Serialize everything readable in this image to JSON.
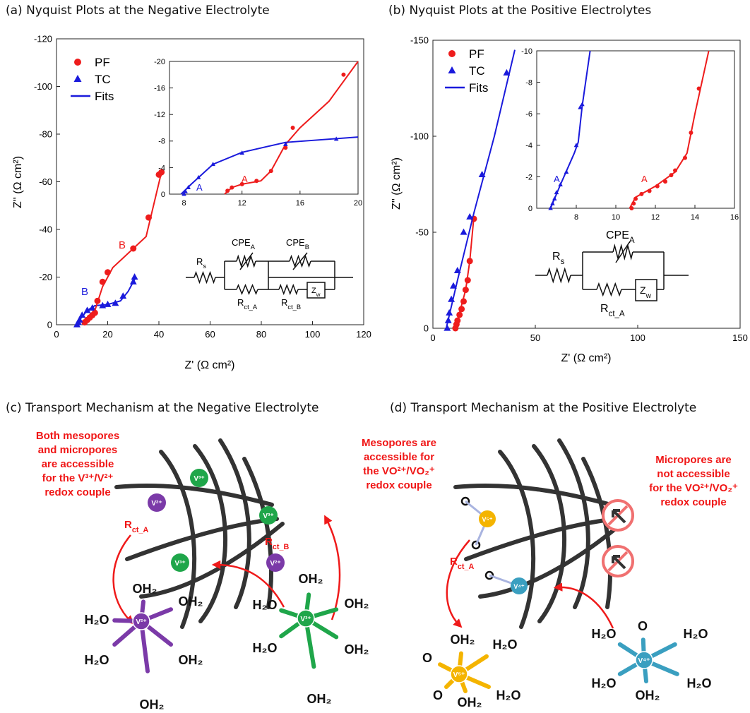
{
  "chart_data": [
    {
      "type": "scatter",
      "title": "(a) Nyquist Plots at the Negative Electrolyte",
      "x_label": "Z' (Ω cm²)",
      "y_label": "Z'' (Ω cm²)",
      "xlim": [
        0,
        120
      ],
      "xticks": [
        0,
        20,
        40,
        60,
        80,
        100,
        120
      ],
      "ylim": [
        0,
        -120
      ],
      "yticks": [
        0,
        -20,
        -40,
        -60,
        -80,
        -100,
        -120
      ],
      "legend": "upper left",
      "series": [
        {
          "name": "PF",
          "marker": "circle",
          "color": "#ee1c1c",
          "x": [
            11,
            12,
            13,
            14,
            15,
            16,
            18,
            20,
            30,
            36,
            40,
            41
          ],
          "values": [
            -1,
            -2,
            -3,
            -4,
            -5,
            -10,
            -18,
            -22,
            -32,
            -45,
            -63,
            -64
          ]
        },
        {
          "name": "TC",
          "marker": "triangle",
          "color": "#1a1adc",
          "x": [
            8,
            8.5,
            9,
            10,
            12,
            14,
            18,
            20,
            23,
            26,
            30,
            30.5
          ],
          "values": [
            0,
            -1,
            -2,
            -4,
            -6,
            -7,
            -8,
            -8.5,
            -9,
            -12,
            -18,
            -20
          ]
        },
        {
          "name": "Fits",
          "marker": "line",
          "color": "#1a1adc",
          "x": [
            7.8,
            9,
            12,
            15,
            20,
            25,
            28,
            31
          ],
          "values": [
            0,
            -2,
            -6,
            -8,
            -8.5,
            -10,
            -14,
            -20
          ]
        },
        {
          "marker": "line",
          "color": "#ee1c1c",
          "x": [
            10.8,
            11,
            13,
            15,
            18,
            22,
            30,
            35,
            41
          ],
          "values": [
            0,
            -1,
            -3,
            -6,
            -16,
            -24,
            -32,
            -37,
            -64
          ]
        }
      ],
      "annotations": [
        {
          "text": "B",
          "color": "#ee1c1c"
        },
        {
          "text": "B",
          "color": "#1a1adc"
        }
      ]
    },
    {
      "type": "scatter",
      "xlim": [
        7,
        20
      ],
      "xticks": [
        8,
        12,
        16,
        20
      ],
      "ylim": [
        0,
        -20
      ],
      "yticks": [
        0,
        -4,
        -8,
        -12,
        -16,
        -20
      ],
      "series": [
        {
          "marker": "circle",
          "color": "#ee1c1c",
          "x": [
            11,
            11.3,
            12,
            13,
            14,
            15,
            15.5,
            19
          ],
          "values": [
            -0.5,
            -1,
            -1.5,
            -2,
            -3.5,
            -7,
            -10,
            -18
          ]
        },
        {
          "marker": "line",
          "color": "#ee1c1c",
          "x": [
            10.8,
            11.3,
            12,
            13.3,
            14,
            15,
            16,
            18,
            20
          ],
          "values": [
            0,
            -1,
            -1.5,
            -2,
            -3.5,
            -7.5,
            -10,
            -14,
            -20
          ]
        },
        {
          "marker": "triangle",
          "color": "#1a1adc",
          "x": [
            8,
            8.1,
            8.3,
            9,
            10,
            12,
            15,
            18.5
          ],
          "values": [
            0,
            -0.4,
            -1,
            -2.5,
            -4.5,
            -6.2,
            -7.5,
            -8.3
          ]
        },
        {
          "marker": "line",
          "color": "#1a1adc",
          "x": [
            7.8,
            8.5,
            10,
            12,
            15,
            20
          ],
          "values": [
            0,
            -1.5,
            -4.5,
            -6.3,
            -7.8,
            -8.6
          ]
        }
      ],
      "annotations": [
        {
          "text": "A",
          "color": "#1a1adc"
        },
        {
          "text": "A",
          "color": "#ee1c1c"
        }
      ]
    },
    {
      "type": "scatter",
      "title": "(b) Nyquist Plots at the Positive Electrolytes",
      "x_label": "Z' (Ω cm²)",
      "y_label": "Z'' (Ω cm²)",
      "xlim": [
        0,
        150
      ],
      "xticks": [
        0,
        50,
        100,
        150
      ],
      "ylim": [
        0,
        -150
      ],
      "yticks": [
        0,
        -50,
        -100,
        -150
      ],
      "legend": "upper left",
      "series": [
        {
          "name": "PF",
          "marker": "circle",
          "color": "#ee1c1c",
          "x": [
            11,
            11.5,
            12,
            13,
            14,
            15,
            16,
            17,
            18,
            20
          ],
          "values": [
            0,
            -2,
            -4,
            -7,
            -10,
            -14,
            -20,
            -25,
            -35,
            -57
          ]
        },
        {
          "name": "TC",
          "marker": "triangle",
          "color": "#1a1adc",
          "x": [
            7,
            7.5,
            8,
            9,
            10,
            12,
            15,
            18,
            24,
            36
          ],
          "values": [
            0,
            -4,
            -8,
            -15,
            -22,
            -30,
            -50,
            -58,
            -80,
            -133
          ]
        },
        {
          "name": "Fits",
          "marker": "line",
          "color": "#1a1adc",
          "x": [
            6.5,
            12,
            20,
            30,
            40
          ],
          "values": [
            0,
            -25,
            -60,
            -100,
            -145
          ]
        },
        {
          "marker": "line",
          "color": "#ee1c1c",
          "x": [
            10.8,
            13,
            16,
            18,
            20
          ],
          "values": [
            0,
            -8,
            -20,
            -35,
            -58
          ]
        }
      ]
    },
    {
      "type": "scatter",
      "xlim": [
        6,
        16
      ],
      "xticks": [
        8,
        10,
        12,
        14,
        16
      ],
      "ylim": [
        0,
        -10
      ],
      "yticks": [
        0,
        -2,
        -4,
        -6,
        -8,
        -10
      ],
      "series": [
        {
          "marker": "triangle",
          "color": "#1a1adc",
          "x": [
            6.7,
            6.8,
            6.9,
            7,
            7.2,
            7.5,
            8,
            8.2,
            8.3
          ],
          "values": [
            0,
            -0.3,
            -0.6,
            -1,
            -1.5,
            -2.3,
            -4,
            -6.4,
            -6.6
          ]
        },
        {
          "marker": "line",
          "color": "#1a1adc",
          "x": [
            6.7,
            7.2,
            7.9,
            8.1,
            8.3,
            8.7
          ],
          "values": [
            0,
            -1.5,
            -3.5,
            -4.2,
            -6.5,
            -10
          ]
        },
        {
          "marker": "circle",
          "color": "#ee1c1c",
          "x": [
            10.8,
            10.9,
            11,
            11.3,
            11.7,
            12.1,
            12.5,
            12.8,
            13,
            13.5,
            13.8,
            14.2
          ],
          "values": [
            0,
            -0.3,
            -0.6,
            -0.9,
            -1.1,
            -1.4,
            -1.7,
            -2.1,
            -2.4,
            -3.2,
            -4.8,
            -7.6
          ]
        },
        {
          "marker": "line",
          "color": "#ee1c1c",
          "x": [
            10.7,
            11,
            12,
            13,
            13.6,
            14,
            14.7
          ],
          "values": [
            0,
            -0.7,
            -1.4,
            -2.3,
            -3.5,
            -6,
            -10
          ]
        }
      ],
      "annotations": [
        {
          "text": "A",
          "color": "#1a1adc"
        },
        {
          "text": "A",
          "color": "#ee1c1c"
        }
      ]
    }
  ],
  "figure": {
    "circuit_a": {
      "rs": {
        "main": "R",
        "sub": "s"
      },
      "cpe_a": {
        "main": "CPE",
        "sub": "A"
      },
      "cpe_b": {
        "main": "CPE",
        "sub": "B"
      },
      "rct_a": {
        "main": "R",
        "sub": "ct_A"
      },
      "rct_b": {
        "main": "R",
        "sub": "ct_B"
      },
      "zw": {
        "main": "Z",
        "sub": "w"
      }
    },
    "circuit_b": {
      "rs": {
        "main": "R",
        "sub": "s"
      },
      "cpe_a": {
        "main": "CPE",
        "sub": "A"
      },
      "rct_a": {
        "main": "R",
        "sub": "ct_A"
      },
      "zw": {
        "main": "Z",
        "sub": "w"
      }
    },
    "panel_c": {
      "title": "(c) Transport Mechanism at the Negative Electrolyte",
      "note": [
        "Both mesopores",
        "and micropores",
        "are accessible",
        "for the V³⁺/V²⁺",
        "redox couple"
      ],
      "rct_a": {
        "main": "R",
        "sub": "ct_A"
      },
      "rct_b": {
        "main": "R",
        "sub": "ct_B"
      },
      "ions": [
        "V³⁺",
        "V²⁺",
        "V³⁺",
        "V³⁺",
        "V²⁺"
      ],
      "complex_1": {
        "center": "V²⁺",
        "ligands": [
          "H₂O",
          "OH₂",
          "OH₂",
          "H₂O",
          "OH₂",
          "OH₂"
        ]
      },
      "complex_2": {
        "center": "V³⁺",
        "ligands": [
          "H₂O",
          "OH₂",
          "OH₂",
          "H₂O",
          "OH₂",
          "OH₂"
        ]
      }
    },
    "panel_d": {
      "title": "(d) Transport Mechanism at the Positive Electrolyte",
      "note_meso": [
        "Mesopores are",
        "accessible for",
        "the VO²⁺/VO₂⁺",
        "redox couple"
      ],
      "note_micro": [
        "Micropores are",
        "not accessible",
        "for the VO²⁺/VO₂⁺",
        "redox couple"
      ],
      "rct_a": {
        "main": "R",
        "sub": "ct_A"
      },
      "ions": [
        "V⁵⁺",
        "V⁴⁺"
      ],
      "complex_1": {
        "center": "V⁵⁺",
        "ligands": [
          "OH₂",
          "H₂O",
          "O",
          "O",
          "OH₂",
          "H₂O"
        ]
      },
      "complex_2": {
        "center": "V⁴⁺",
        "ligands": [
          "O",
          "H₂O",
          "H₂O",
          "H₂O",
          "OH₂",
          "H₂O"
        ]
      }
    }
  }
}
